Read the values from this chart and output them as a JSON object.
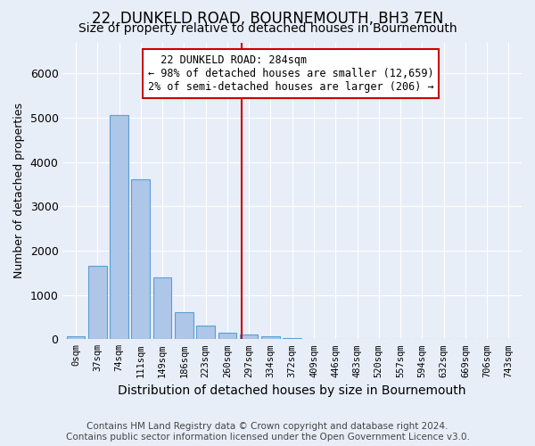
{
  "title": "22, DUNKELD ROAD, BOURNEMOUTH, BH3 7EN",
  "subtitle": "Size of property relative to detached houses in Bournemouth",
  "xlabel": "Distribution of detached houses by size in Bournemouth",
  "ylabel": "Number of detached properties",
  "footer_line1": "Contains HM Land Registry data © Crown copyright and database right 2024.",
  "footer_line2": "Contains public sector information licensed under the Open Government Licence v3.0.",
  "bar_labels": [
    "0sqm",
    "37sqm",
    "74sqm",
    "111sqm",
    "149sqm",
    "186sqm",
    "223sqm",
    "260sqm",
    "297sqm",
    "334sqm",
    "372sqm",
    "409sqm",
    "446sqm",
    "483sqm",
    "520sqm",
    "557sqm",
    "594sqm",
    "632sqm",
    "669sqm",
    "706sqm",
    "743sqm"
  ],
  "bar_values": [
    70,
    1650,
    5060,
    3600,
    1400,
    610,
    300,
    150,
    110,
    70,
    30,
    5,
    0,
    0,
    0,
    0,
    0,
    0,
    0,
    0,
    0
  ],
  "bar_color": "#aec6e8",
  "bar_edge_color": "#5a9fd4",
  "annotation_line1": "  22 DUNKELD ROAD: 284sqm",
  "annotation_line2": "← 98% of detached houses are smaller (12,659)",
  "annotation_line3": "2% of semi-detached houses are larger (206) →",
  "annotation_box_color": "#ffffff",
  "annotation_box_edge_color": "#cc0000",
  "vline_color": "#cc0000",
  "ylim_max": 6700,
  "bg_color": "#e8eef8",
  "grid_color": "#ffffff",
  "title_fontsize": 12,
  "subtitle_fontsize": 10,
  "tick_label_fontsize": 7.5,
  "ylabel_fontsize": 9,
  "xlabel_fontsize": 10,
  "annotation_fontsize": 8.5,
  "footer_fontsize": 7.5
}
